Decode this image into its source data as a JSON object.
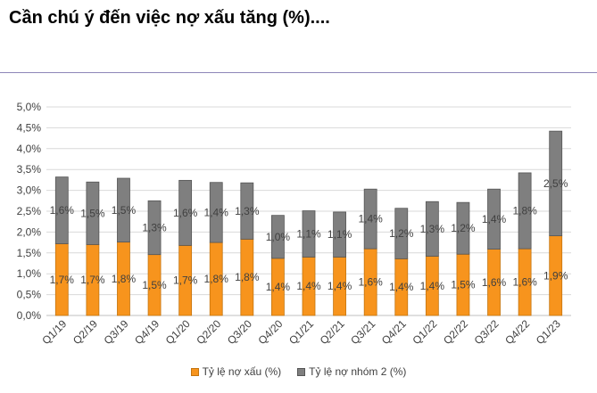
{
  "title": "Cần chú ý đến việc nợ xấu tăng (%)....",
  "colors": {
    "npl": "#f7941d",
    "group2": "#7f7f7f",
    "grid": "#d9d9d9",
    "rule": "#8e86b8"
  },
  "chart_data": {
    "type": "bar",
    "stacked": true,
    "categories": [
      "Q1/19",
      "Q2/19",
      "Q3/19",
      "Q4/19",
      "Q1/20",
      "Q2/20",
      "Q3/20",
      "Q4/20",
      "Q1/21",
      "Q2/21",
      "Q3/21",
      "Q4/21",
      "Q1/22",
      "Q2/22",
      "Q3/22",
      "Q4/22",
      "Q1/23"
    ],
    "series": [
      {
        "name": "Tỷ lệ nợ xấu (%)",
        "color": "#f7941d",
        "values": [
          1.72,
          1.7,
          1.76,
          1.46,
          1.68,
          1.75,
          1.83,
          1.37,
          1.4,
          1.4,
          1.6,
          1.36,
          1.42,
          1.47,
          1.59,
          1.6,
          1.91
        ],
        "labels": [
          "1,7%",
          "1,7%",
          "1,8%",
          "1,5%",
          "1,7%",
          "1,8%",
          "1,8%",
          "1,4%",
          "1,4%",
          "1,4%",
          "1,6%",
          "1,4%",
          "1,4%",
          "1,5%",
          "1,6%",
          "1,6%",
          "1,9%"
        ]
      },
      {
        "name": "Tỷ lệ nợ nhóm 2 (%)",
        "color": "#7f7f7f",
        "values": [
          1.6,
          1.5,
          1.53,
          1.29,
          1.56,
          1.44,
          1.35,
          1.03,
          1.11,
          1.08,
          1.43,
          1.21,
          1.31,
          1.24,
          1.44,
          1.82,
          2.51
        ],
        "labels": [
          "1,6%",
          "1,5%",
          "1,5%",
          "1,3%",
          "1,6%",
          "1,4%",
          "1,3%",
          "1,0%",
          "1,1%",
          "1,1%",
          "1,4%",
          "1,2%",
          "1,3%",
          "1,2%",
          "1,4%",
          "1,8%",
          "2,5%"
        ]
      }
    ],
    "ylim": [
      0,
      5
    ],
    "yticks": [
      "0,0%",
      "0,5%",
      "1,0%",
      "1,5%",
      "2,0%",
      "2,5%",
      "3,0%",
      "3,5%",
      "4,0%",
      "4,5%",
      "5,0%"
    ],
    "grid": true,
    "legend_position": "bottom"
  }
}
